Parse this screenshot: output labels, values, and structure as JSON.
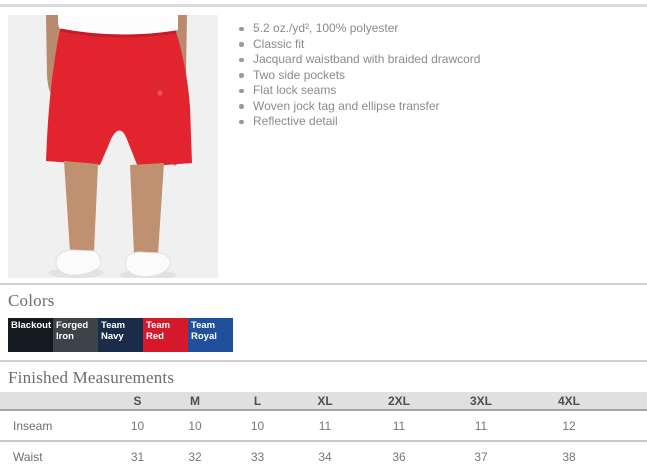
{
  "product": {
    "features": [
      "5.2 oz./yd², 100% polyester",
      "Classic fit",
      "Jacquard waistband with braided drawcord",
      "Two side pockets",
      "Flat lock seams",
      "Woven jock tag and ellipse transfer",
      "Reflective detail"
    ]
  },
  "colors_section": {
    "title": "Colors",
    "swatches": [
      {
        "name": "Blackout",
        "hex": "#141b21"
      },
      {
        "name": "Forged Iron",
        "hex": "#3d4347"
      },
      {
        "name": "Team Navy",
        "hex": "#1b2c4a"
      },
      {
        "name": "Team Red",
        "hex": "#d6182b"
      },
      {
        "name": "Team Royal",
        "hex": "#20509c"
      }
    ]
  },
  "measurements": {
    "title": "Finished Measurements",
    "columns": [
      "S",
      "M",
      "L",
      "XL",
      "2XL",
      "3XL",
      "4XL"
    ],
    "rows": [
      {
        "label": "Inseam",
        "values": [
          "10",
          "10",
          "10",
          "11",
          "11",
          "11",
          "12"
        ]
      },
      {
        "label": "Waist",
        "values": [
          "31",
          "32",
          "33",
          "34",
          "36",
          "37",
          "38"
        ]
      }
    ]
  }
}
